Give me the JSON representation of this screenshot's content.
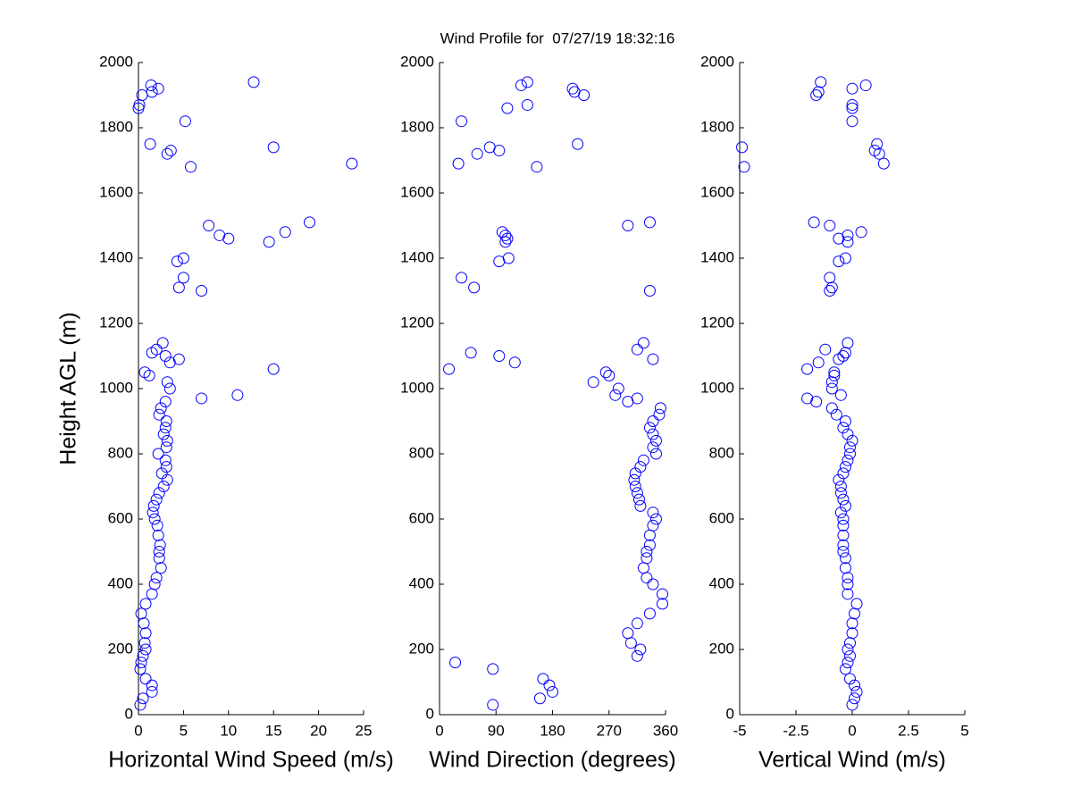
{
  "title": "Wind Profile for  07/27/19 18:32:16",
  "chart_data": [
    {
      "type": "scatter",
      "xlabel": "Horizontal Wind Speed (m/s)",
      "ylabel": "Height AGL (m)",
      "color": "#0000ff",
      "xlim": [
        0,
        25
      ],
      "xticks": [
        0,
        5,
        10,
        15,
        20,
        25
      ],
      "ylim": [
        0,
        2000
      ],
      "yticks": [
        0,
        200,
        400,
        600,
        800,
        1000,
        1200,
        1400,
        1600,
        1800,
        2000
      ],
      "x": [
        0.2,
        0.5,
        1.5,
        1.5,
        0.8,
        0.2,
        0.3,
        0.5,
        0.8,
        0.7,
        0.8,
        0.6,
        0.3,
        0.8,
        1.5,
        1.8,
        2.0,
        2.5,
        2.3,
        2.3,
        2.4,
        2.2,
        2.1,
        1.8,
        1.6,
        1.7,
        2.0,
        2.3,
        2.8,
        3.2,
        2.6,
        3.1,
        3.0,
        2.2,
        3.1,
        3.2,
        2.8,
        3.0,
        3.1,
        2.3,
        2.5,
        3.0,
        7.0,
        11.0,
        3.5,
        3.2,
        1.2,
        0.7,
        15.0,
        3.5,
        4.5,
        3.0,
        1.5,
        2.0,
        2.7,
        7.0,
        4.5,
        5.0,
        4.3,
        5.0,
        14.5,
        10.0,
        9.0,
        16.3,
        7.8,
        19.0,
        5.8,
        23.7,
        3.2,
        3.6,
        15.0,
        1.3,
        5.2,
        0.0,
        0.1,
        0.4,
        1.5,
        2.2,
        1.4,
        12.8
      ],
      "y": [
        30,
        50,
        70,
        90,
        110,
        140,
        160,
        180,
        200,
        220,
        250,
        280,
        310,
        340,
        370,
        400,
        420,
        450,
        480,
        500,
        520,
        550,
        580,
        600,
        620,
        640,
        660,
        680,
        700,
        720,
        740,
        760,
        780,
        800,
        820,
        840,
        860,
        880,
        900,
        920,
        940,
        960,
        970,
        980,
        1000,
        1020,
        1040,
        1050,
        1060,
        1080,
        1090,
        1100,
        1110,
        1120,
        1140,
        1300,
        1310,
        1340,
        1390,
        1400,
        1450,
        1460,
        1470,
        1480,
        1500,
        1510,
        1680,
        1690,
        1720,
        1730,
        1740,
        1750,
        1820,
        1860,
        1870,
        1900,
        1910,
        1920,
        1930,
        1940
      ]
    },
    {
      "type": "scatter",
      "xlabel": "Wind Direction (degrees)",
      "color": "#0000ff",
      "xlim": [
        0,
        360
      ],
      "xticks": [
        0,
        90,
        180,
        270,
        360
      ],
      "ylim": [
        0,
        2000
      ],
      "yticks": [
        0,
        200,
        400,
        600,
        800,
        1000,
        1200,
        1400,
        1600,
        1800,
        2000
      ],
      "x": [
        85,
        160,
        180,
        175,
        165,
        85,
        25,
        315,
        320,
        305,
        300,
        315,
        335,
        355,
        355,
        340,
        330,
        325,
        330,
        330,
        335,
        335,
        340,
        345,
        340,
        320,
        318,
        315,
        312,
        310,
        312,
        320,
        325,
        345,
        340,
        345,
        340,
        335,
        340,
        350,
        352,
        300,
        315,
        280,
        285,
        245,
        270,
        265,
        15,
        120,
        340,
        95,
        50,
        315,
        325,
        335,
        55,
        35,
        95,
        110,
        105,
        108,
        105,
        100,
        300,
        335,
        155,
        30,
        60,
        95,
        80,
        220,
        35,
        108,
        140,
        230,
        215,
        212,
        130,
        140
      ],
      "y": [
        30,
        50,
        70,
        90,
        110,
        140,
        160,
        180,
        200,
        220,
        250,
        280,
        310,
        340,
        370,
        400,
        420,
        450,
        480,
        500,
        520,
        550,
        580,
        600,
        620,
        640,
        660,
        680,
        700,
        720,
        740,
        760,
        780,
        800,
        820,
        840,
        860,
        880,
        900,
        920,
        940,
        960,
        970,
        980,
        1000,
        1020,
        1040,
        1050,
        1060,
        1080,
        1090,
        1100,
        1110,
        1120,
        1140,
        1300,
        1310,
        1340,
        1390,
        1400,
        1450,
        1460,
        1470,
        1480,
        1500,
        1510,
        1680,
        1690,
        1720,
        1730,
        1740,
        1750,
        1820,
        1860,
        1870,
        1900,
        1910,
        1920,
        1930,
        1940
      ]
    },
    {
      "type": "scatter",
      "xlabel": "Vertical Wind (m/s)",
      "color": "#0000ff",
      "xlim": [
        -5,
        5
      ],
      "xticks": [
        -5,
        -2.5,
        0,
        2.5,
        5
      ],
      "ylim": [
        0,
        2000
      ],
      "yticks": [
        0,
        200,
        400,
        600,
        800,
        1000,
        1200,
        1400,
        1600,
        1800,
        2000
      ],
      "x": [
        0,
        0.1,
        0.2,
        0.1,
        -0.1,
        -0.3,
        -0.2,
        -0.1,
        -0.2,
        -0.1,
        0,
        0,
        0.1,
        0.2,
        -0.2,
        -0.2,
        -0.2,
        -0.3,
        -0.3,
        -0.4,
        -0.4,
        -0.4,
        -0.4,
        -0.4,
        -0.5,
        -0.3,
        -0.4,
        -0.5,
        -0.5,
        -0.6,
        -0.4,
        -0.3,
        -0.2,
        -0.1,
        -0.1,
        0,
        -0.2,
        -0.4,
        -0.3,
        -0.7,
        -0.9,
        -1.6,
        -2,
        -0.5,
        -0.9,
        -0.9,
        -0.8,
        -0.8,
        -2,
        -1.5,
        -0.6,
        -0.4,
        -0.3,
        -1.2,
        -0.2,
        -1,
        -0.9,
        -1,
        -0.6,
        -0.3,
        -0.2,
        -0.6,
        -0.2,
        0.4,
        -1,
        -1.7,
        -4.8,
        1.4,
        1.2,
        1.0,
        -4.9,
        1.1,
        0,
        0,
        0,
        -1.6,
        -1.5,
        0,
        0.6,
        -1.4
      ],
      "y": [
        30,
        50,
        70,
        90,
        110,
        140,
        160,
        180,
        200,
        220,
        250,
        280,
        310,
        340,
        370,
        400,
        420,
        450,
        480,
        500,
        520,
        550,
        580,
        600,
        620,
        640,
        660,
        680,
        700,
        720,
        740,
        760,
        780,
        800,
        820,
        840,
        860,
        880,
        900,
        920,
        940,
        960,
        970,
        980,
        1000,
        1020,
        1040,
        1050,
        1060,
        1080,
        1090,
        1100,
        1110,
        1120,
        1140,
        1300,
        1310,
        1340,
        1390,
        1400,
        1450,
        1460,
        1470,
        1480,
        1500,
        1510,
        1680,
        1690,
        1720,
        1730,
        1740,
        1750,
        1820,
        1860,
        1870,
        1900,
        1910,
        1920,
        1930,
        1940
      ]
    }
  ]
}
